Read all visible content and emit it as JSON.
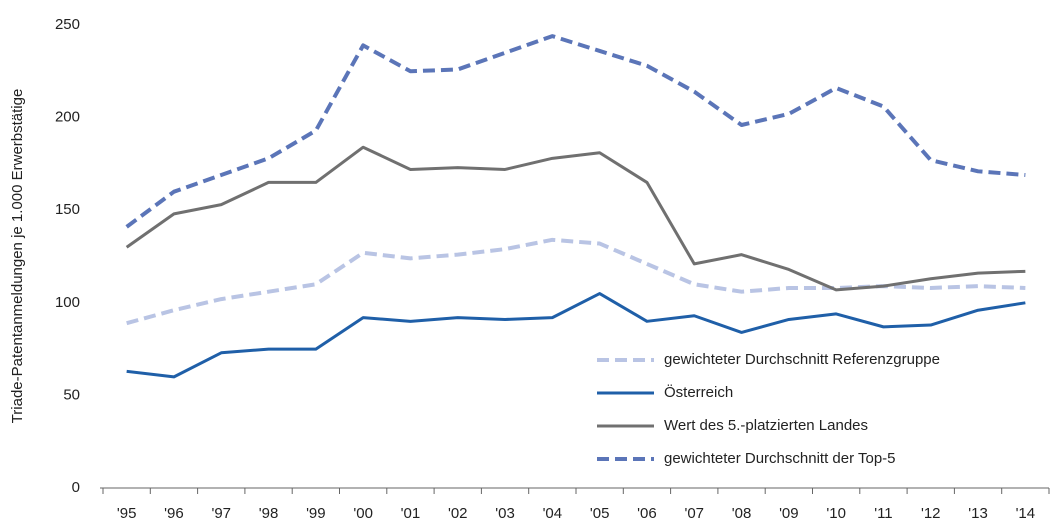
{
  "chart_data": {
    "type": "line",
    "y_label": "Triade-Patentanmeldungen je 1.000 Erwerbstätige",
    "categories": [
      "'95",
      "'96",
      "'97",
      "'98",
      "'99",
      "'00",
      "'01",
      "'02",
      "'03",
      "'04",
      "'05",
      "'06",
      "'07",
      "'08",
      "'09",
      "'10",
      "'11",
      "'12",
      "'13",
      "'14"
    ],
    "series": [
      {
        "name": "gewichteter Durchschnitt Referenzgruppe",
        "color": "#b9c4e4",
        "dashed": true,
        "values": [
          89,
          96,
          102,
          106,
          110,
          127,
          124,
          126,
          129,
          134,
          132,
          121,
          110,
          106,
          108,
          108,
          109,
          108,
          109,
          108
        ]
      },
      {
        "name": "Österreich",
        "color": "#1f5fa8",
        "dashed": false,
        "values": [
          63,
          60,
          73,
          75,
          75,
          92,
          90,
          92,
          91,
          92,
          105,
          90,
          93,
          84,
          91,
          94,
          87,
          88,
          96,
          100
        ]
      },
      {
        "name": "Wert des 5.-platzierten Landes",
        "color": "#707070",
        "dashed": false,
        "values": [
          130,
          148,
          153,
          165,
          165,
          184,
          172,
          173,
          172,
          178,
          181,
          165,
          121,
          126,
          118,
          107,
          109,
          113,
          116,
          117
        ]
      },
      {
        "name": "gewichteter Durchschnitt der Top-5",
        "color": "#5b75b8",
        "dashed": true,
        "values": [
          141,
          160,
          169,
          178,
          193,
          239,
          225,
          226,
          235,
          244,
          236,
          228,
          214,
          196,
          202,
          216,
          206,
          177,
          171,
          169
        ]
      }
    ],
    "ylim": [
      0,
      250
    ],
    "yticks": [
      0,
      50,
      100,
      150,
      200,
      250
    ],
    "grid": false,
    "legend": "lower right"
  }
}
